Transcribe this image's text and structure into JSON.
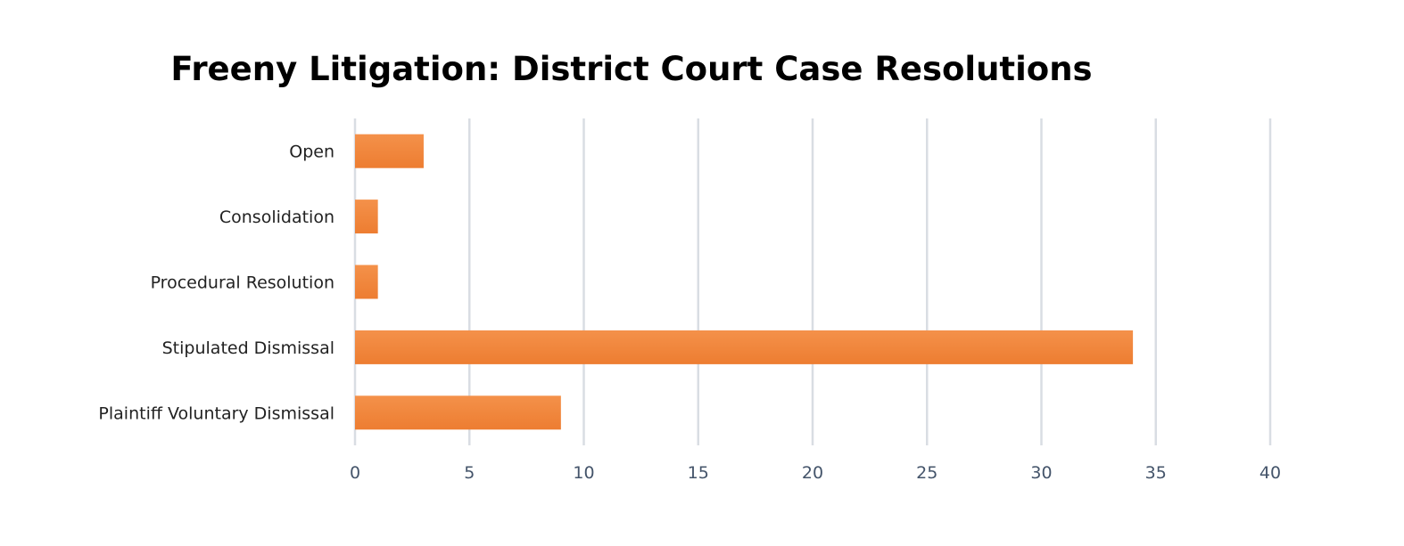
{
  "chart_data": {
    "type": "bar",
    "orientation": "horizontal",
    "title": "Freeny Litigation: District Court Case Resolutions",
    "categories": [
      "Open",
      "Consolidation",
      "Procedural Resolution",
      "Stipulated Dismissal",
      "Plaintiff Voluntary Dismissal"
    ],
    "values": [
      3,
      1,
      1,
      34,
      9
    ],
    "xlabel": "",
    "ylabel": "",
    "xlim": [
      0,
      40
    ],
    "x_ticks": [
      0,
      5,
      10,
      15,
      20,
      25,
      30,
      35,
      40
    ],
    "grid": true,
    "legend": "none",
    "bar_color": "#ed7d31",
    "bar_color_light": "#f4914a",
    "grid_color": "#d9dde3"
  }
}
